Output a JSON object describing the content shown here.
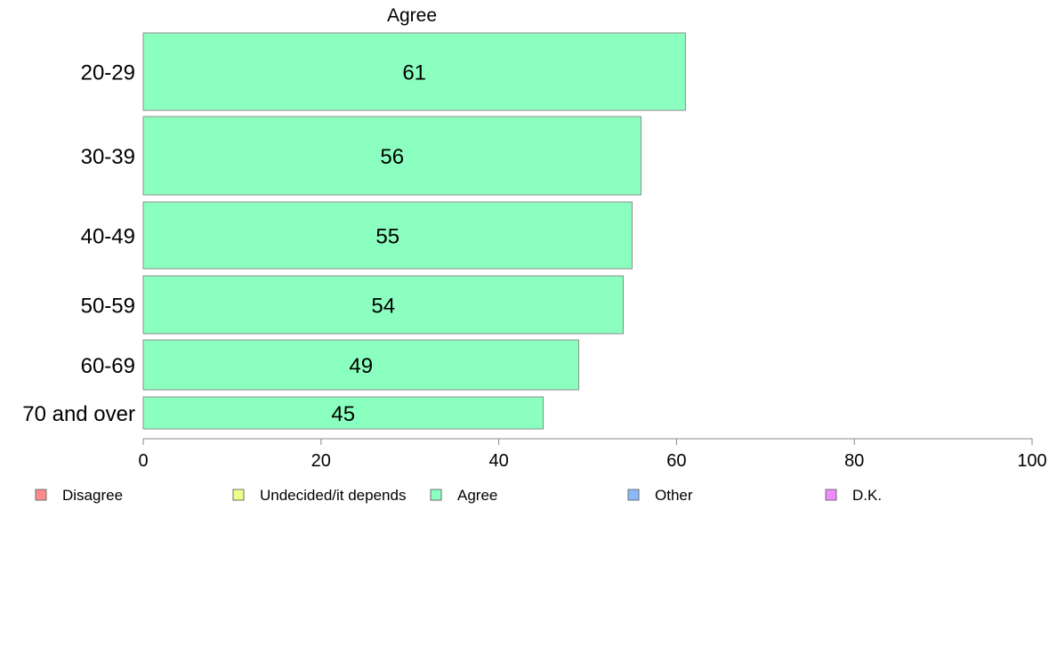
{
  "chart_data": {
    "type": "bar",
    "orientation": "horizontal",
    "title": "Agree",
    "categories": [
      "20-29",
      "30-39",
      "40-49",
      "50-59",
      "60-69",
      "70 and over"
    ],
    "series": [
      {
        "name": "Agree",
        "values": [
          61,
          56,
          55,
          54,
          49,
          45
        ],
        "color": "#8bffbf"
      }
    ],
    "data_labels": [
      "61",
      "56",
      "55",
      "54",
      "49",
      "45"
    ],
    "xlim": [
      0,
      100
    ],
    "xticks": [
      0,
      20,
      40,
      60,
      80,
      100
    ],
    "xtick_labels": [
      "0",
      "20",
      "40",
      "60",
      "80",
      "100"
    ],
    "grid": false,
    "legend_position": "bottom",
    "legend": [
      {
        "label": "Disagree",
        "color": "#ff8a8a"
      },
      {
        "label": "Undecided/it depends",
        "color": "#f0ff8a"
      },
      {
        "label": "Agree",
        "color": "#8bffbf"
      },
      {
        "label": "Other",
        "color": "#8ab8ff"
      },
      {
        "label": "D.K.",
        "color": "#ef8aff"
      }
    ]
  }
}
